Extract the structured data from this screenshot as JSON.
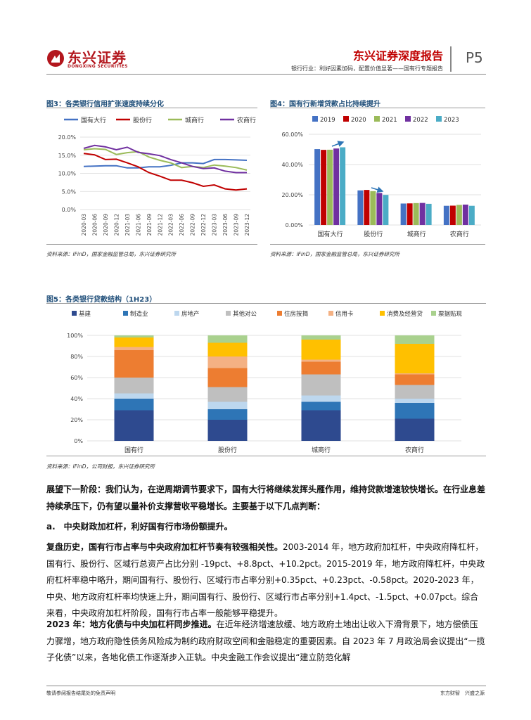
{
  "header": {
    "logo_cn": "东兴证券",
    "logo_en": "DONGXING SECURITIES",
    "report_title": "东兴证券深度报告",
    "subtitle": "银行行业：利好因素加码，配置价值显著——国有行专题报告",
    "page": "P5"
  },
  "colors": {
    "brand": "#b3161d",
    "title_blue": "#1f4e79"
  },
  "figures": {
    "fig3": {
      "title": "图3：各类银行信用扩张速度持续分化",
      "source": "资料来源：iFinD，国家金融监管总局，东兴证券研究所"
    },
    "fig4": {
      "title": "图4：国有行新增贷款占比持续提升",
      "source": "资料来源：iFinD，国家金融监管总局，东兴证券研究所"
    },
    "fig5": {
      "title": "图5：各类银行贷款结构（1H23）",
      "source": "资料来源：iFinD，公司财报，东兴证券研究所"
    }
  },
  "chart_data": [
    {
      "id": "fig3",
      "type": "line",
      "x": [
        "2020-03",
        "2020-06",
        "2020-09",
        "2020-12",
        "2021-03",
        "2021-06",
        "2021-09",
        "2021-12",
        "2022-03",
        "2022-06",
        "2022-09",
        "2022-12",
        "2023-03",
        "2023-06",
        "2023-09",
        "2023-12"
      ],
      "series": [
        {
          "name": "国有大行",
          "color": "#4472c4",
          "values": [
            11.9,
            12.0,
            12.1,
            12.1,
            11.5,
            11.5,
            11.8,
            11.8,
            12.2,
            12.9,
            12.9,
            12.7,
            13.8,
            13.8,
            13.7,
            13.6
          ]
        },
        {
          "name": "股份行",
          "color": "#c00000",
          "values": [
            15.5,
            15.1,
            13.8,
            13.9,
            12.9,
            11.8,
            10.2,
            9.2,
            8.1,
            8.1,
            7.4,
            6.4,
            6.8,
            5.7,
            5.4,
            5.7
          ]
        },
        {
          "name": "城商行",
          "color": "#9bbb59",
          "values": [
            16.5,
            16.8,
            16.6,
            15.2,
            15.7,
            16.0,
            14.5,
            13.6,
            12.9,
            11.6,
            11.9,
            11.6,
            12.3,
            12.0,
            11.6,
            10.9
          ]
        },
        {
          "name": "农商行",
          "color": "#7030a0",
          "values": [
            16.9,
            17.7,
            17.3,
            16.5,
            17.2,
            15.8,
            15.4,
            14.9,
            13.8,
            12.9,
            11.9,
            11.3,
            11.5,
            10.6,
            10.2,
            10.2
          ]
        }
      ],
      "yticks": [
        "20.0%",
        "15.0%",
        "10.0%",
        "5.0%",
        "0.0%"
      ],
      "ylim": [
        0,
        20
      ],
      "legend": "top"
    },
    {
      "id": "fig4",
      "type": "bar",
      "categories": [
        "国有大行",
        "股份行",
        "城商行",
        "农商行"
      ],
      "series": [
        {
          "name": "2019",
          "color": "#4472c4",
          "values": [
            50.2,
            22.9,
            14.2,
            12.7
          ]
        },
        {
          "name": "2020",
          "color": "#c00000",
          "values": [
            49.7,
            23.2,
            14.3,
            12.8
          ]
        },
        {
          "name": "2021",
          "color": "#9bbb59",
          "values": [
            49.8,
            22.4,
            14.5,
            13.3
          ]
        },
        {
          "name": "2022",
          "color": "#7030a0",
          "values": [
            50.6,
            21.2,
            14.6,
            13.5
          ]
        },
        {
          "name": "2023",
          "color": "#4bacc6",
          "values": [
            51.4,
            19.9,
            14.0,
            12.7
          ]
        }
      ],
      "yticks": [
        "60.00%",
        "40.00%",
        "20.00%",
        "0.00%"
      ],
      "ylim": [
        0,
        60
      ],
      "legend": "top"
    },
    {
      "id": "fig5",
      "type": "bar",
      "stacked": true,
      "categories": [
        "国有行",
        "股份行",
        "城商行",
        "农商行"
      ],
      "series": [
        {
          "name": "基建",
          "color": "#2e4a8f",
          "values": [
            29,
            20,
            29,
            21
          ]
        },
        {
          "name": "制造业",
          "color": "#2e75b6",
          "values": [
            11,
            10,
            8,
            15
          ]
        },
        {
          "name": "房地产",
          "color": "#bdd7ee",
          "values": [
            5,
            7,
            6,
            4
          ]
        },
        {
          "name": "其他对公",
          "color": "#bfbfbf",
          "values": [
            15,
            14,
            20,
            13
          ]
        },
        {
          "name": "住房按揭",
          "color": "#ed7d31",
          "values": [
            26,
            18,
            12,
            10
          ]
        },
        {
          "name": "信用卡",
          "color": "#f4b183",
          "values": [
            3,
            11,
            2,
            1
          ]
        },
        {
          "name": "消费及经营贷",
          "color": "#ffc000",
          "values": [
            9,
            13,
            19,
            28
          ]
        },
        {
          "name": "票据贴现",
          "color": "#a9d18e",
          "values": [
            2,
            7,
            4,
            8
          ]
        }
      ],
      "yticks": [
        "100%",
        "80%",
        "60%",
        "40%",
        "20%",
        "0%"
      ],
      "ylim": [
        0,
        100
      ],
      "legend": "top"
    }
  ],
  "body": {
    "intro_bold": "展望下一阶段：我们认为，在逆周期调节要求下，国有大行将继续发挥头雁作用，维持贷款增速较快增长。在行业息差持续承压下，仍有望以量补价支撑营收平稳增长。主要基于以下几点判断：",
    "section_a": "a.　中央财政加杠杆，利好国有行市场份额提升。",
    "p1_bold": "复盘历史，国有行市占率与中央政府加杠杆节奏有较强相关性。",
    "p1_text": "2003-2014 年，地方政府加杠杆，中央政府降杠杆，国有行、股份行、区域行总资产占比分别 -19pct、+8.8pct、+10.2pct。2015-2019 年，地方政府降杠杆，中央政府杠杆率稳中略升，期间国有行、股份行、区域行市占率分别+0.35pct、+0.23pct、-0.58pct。2020-2023 年，中央、地方政府杠杆率均快速上升，期间国有行、股份行、区域行市占率分别+1.4pct、-1.5pct、+0.07pct。综合来看，中央政府加杠杆阶段，国有行市占率一般能够平稳提升。",
    "p2_bold": "2023 年：地方化债与中央加杠杆同步推进。",
    "p2_text": "在近年经济增速放缓、地方政府土地出让收入下滑背景下，地方偿债压力骤增，地方政府隐性债务风险成为制约政府财政空间和金融稳定的重要因素。自 2023 年 7 月政治局会议提出“一揽子化债”以来，各地化债工作逐渐步入正轨。中央金融工作会议提出“建立防范化解"
  },
  "footer": {
    "disclaimer": "敬请参阅报告结尾处的免责声明",
    "slogan": "东方财智　兴盛之源"
  }
}
